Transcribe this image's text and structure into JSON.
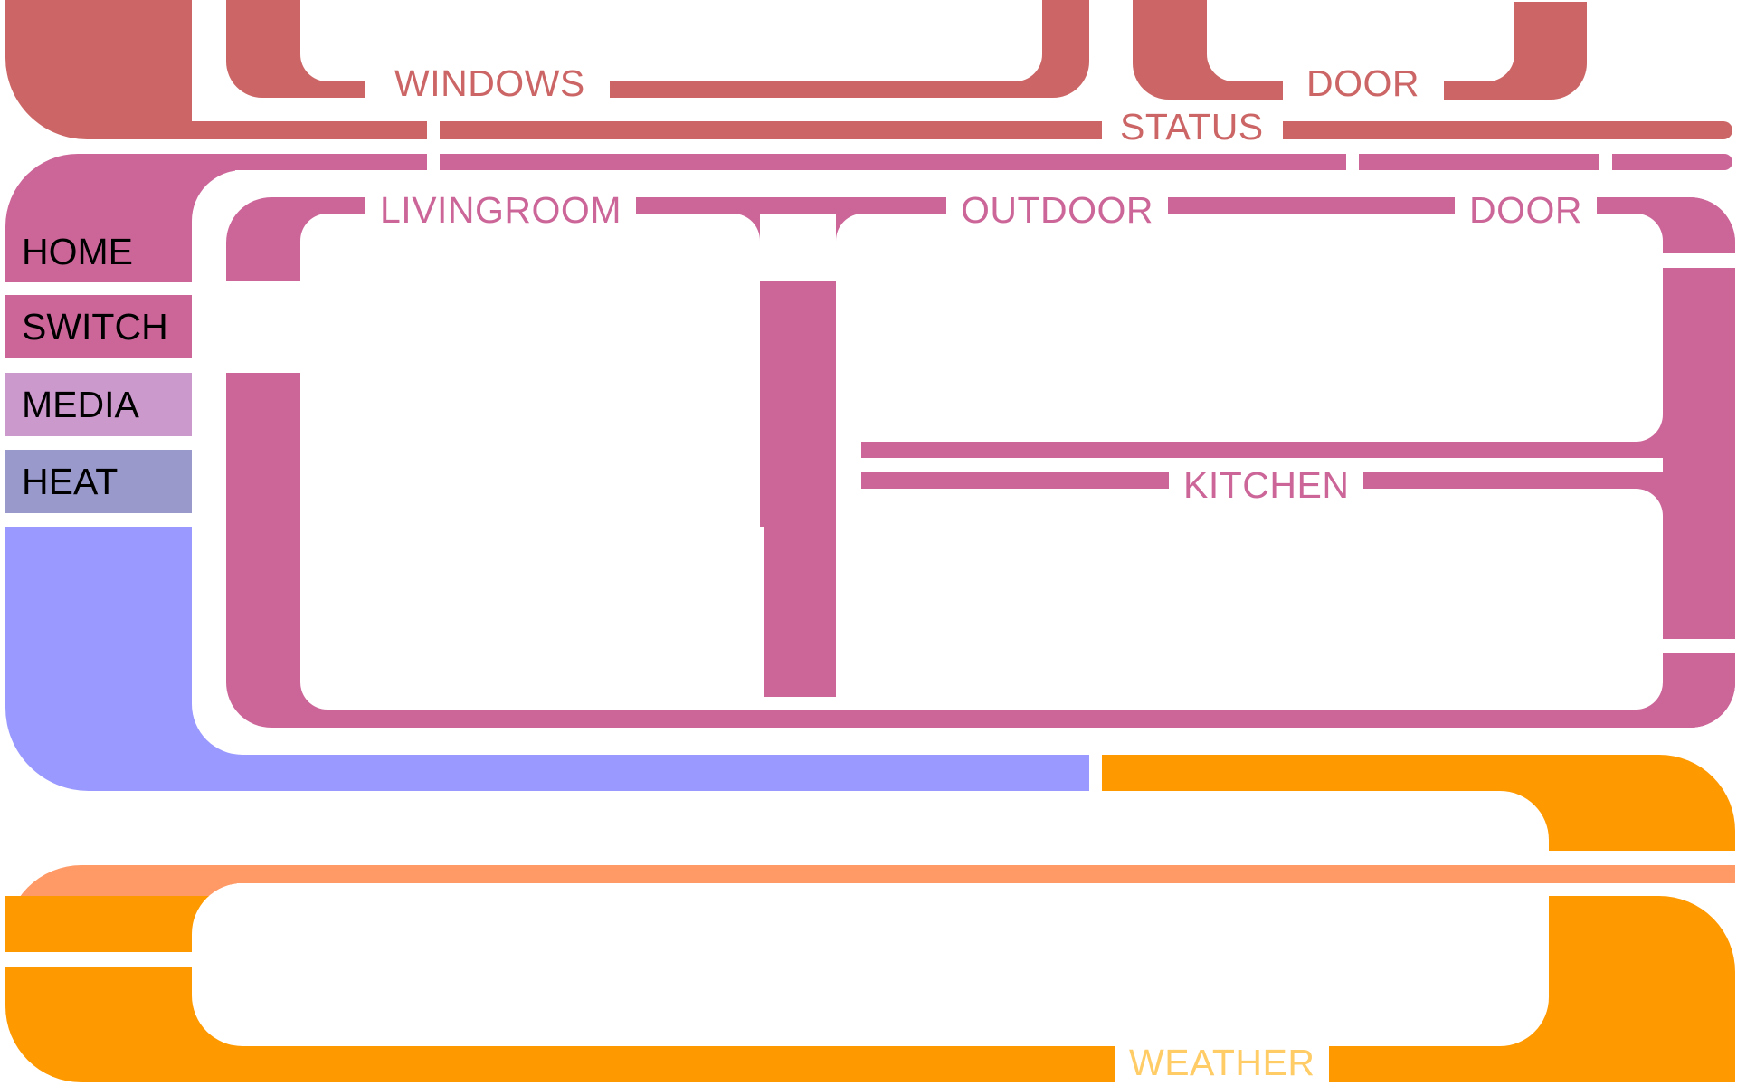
{
  "colors": {
    "status": "#cc6666",
    "home": "#cc6699",
    "media": "#cc99cc",
    "heat": "#9999cc",
    "frame": "#9999ff",
    "weather": "#ff9900",
    "weather_light": "#ff9966",
    "background": "#ffffff"
  },
  "status_panel": {
    "windows_label": "WINDOWS",
    "door_label": "DOOR",
    "status_label": "STATUS"
  },
  "nav": {
    "home": "HOME",
    "switch": "SWITCH",
    "media": "MEDIA",
    "heat": "HEAT"
  },
  "rooms": {
    "livingroom": "LIVINGROOM",
    "outdoor": "OUTDOOR",
    "door": "DOOR",
    "kitchen": "KITCHEN"
  },
  "weather_panel": {
    "weather_label": "WEATHER"
  }
}
